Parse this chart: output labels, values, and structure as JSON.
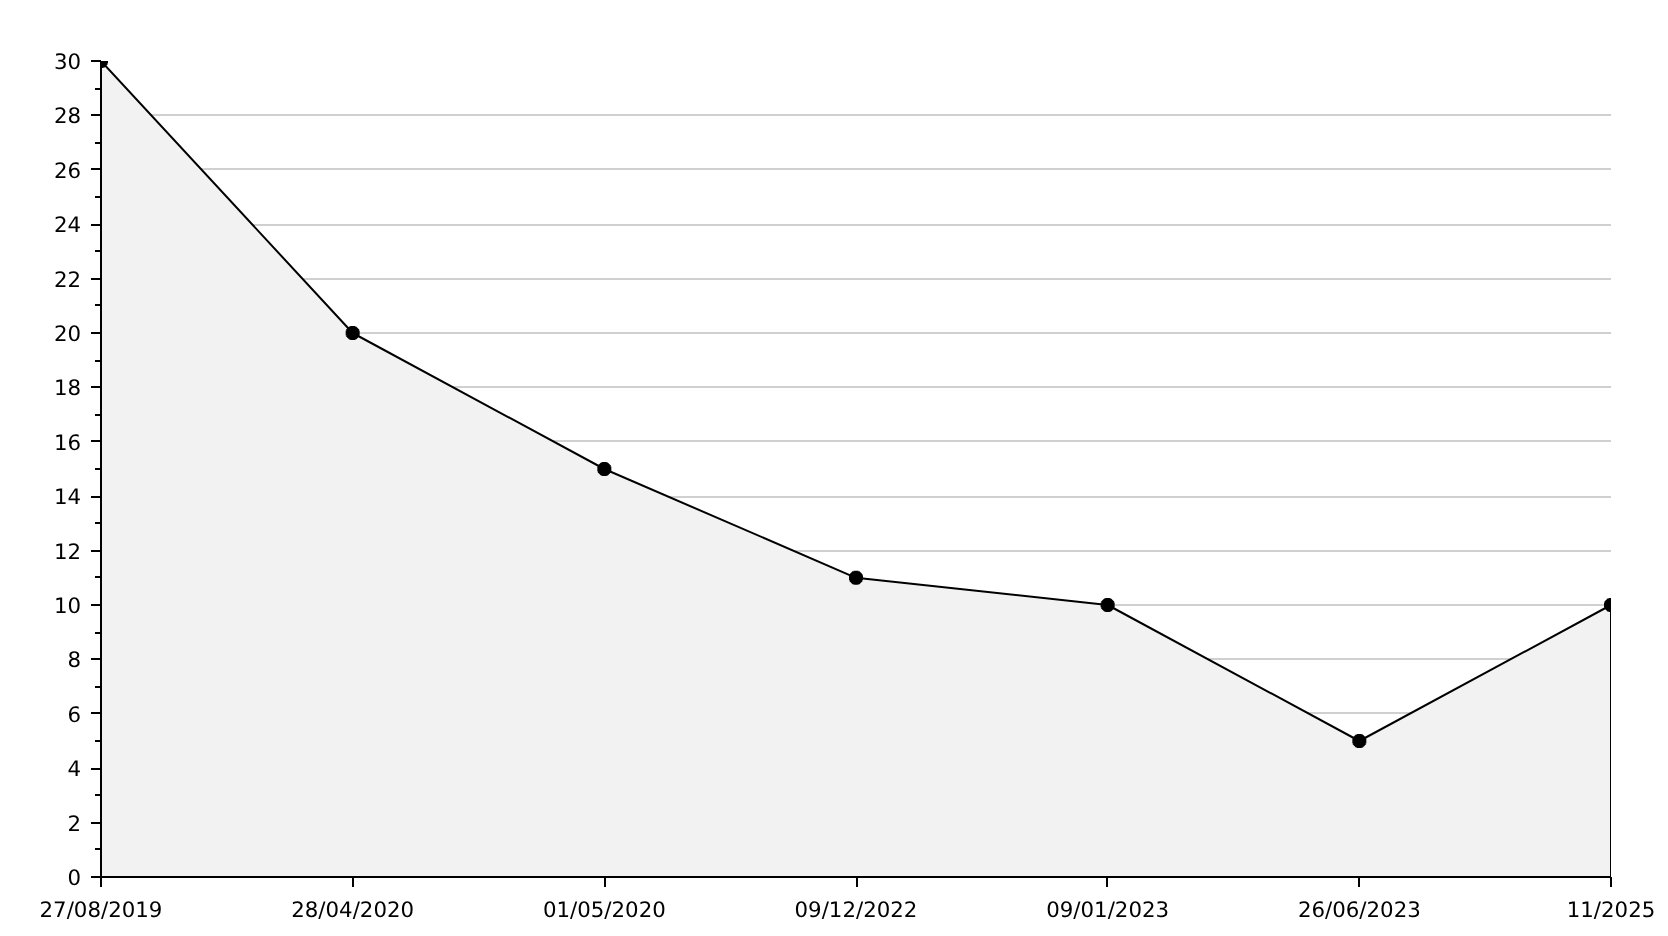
{
  "chart_data": {
    "type": "area",
    "categories": [
      "27/08/2019",
      "28/04/2020",
      "01/05/2020",
      "09/12/2022",
      "09/01/2023",
      "26/06/2023",
      "11/2025"
    ],
    "series": [
      {
        "color": "#f2f2f2",
        "values": [
          30,
          20,
          15,
          11,
          10,
          5,
          10
        ]
      }
    ],
    "ylim": [
      0,
      30
    ],
    "yticks": [
      0,
      2,
      4,
      6,
      8,
      10,
      12,
      14,
      16,
      18,
      20,
      22,
      24,
      26,
      28,
      30
    ],
    "grid": "y",
    "marker": "cross",
    "line_style": "solid"
  }
}
